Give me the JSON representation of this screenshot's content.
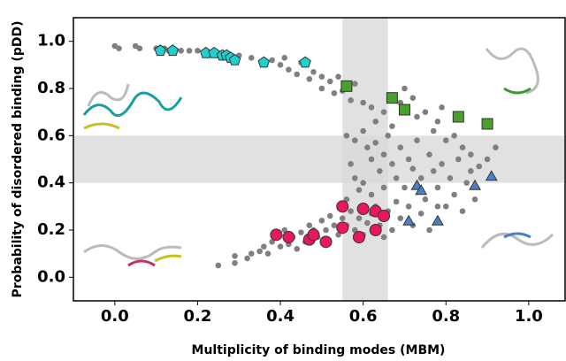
{
  "chart_data": {
    "type": "scatter",
    "xlabel": "Multiplicity of binding modes (MBM)",
    "ylabel": "Probability of disordered binding (pDD)",
    "xlim": [
      -0.1,
      1.09
    ],
    "ylim": [
      -0.1,
      1.1
    ],
    "xticks": [
      {
        "value": 0,
        "label": "0.0"
      },
      {
        "value": 0.2,
        "label": "0.2"
      },
      {
        "value": 0.4,
        "label": "0.4"
      },
      {
        "value": 0.6,
        "label": "0.6"
      },
      {
        "value": 0.8,
        "label": "0.8"
      },
      {
        "value": 1,
        "label": "1.0"
      }
    ],
    "yticks": [
      {
        "value": 0,
        "label": "0.0"
      },
      {
        "value": 0.2,
        "label": "0.2"
      },
      {
        "value": 0.4,
        "label": "0.4"
      },
      {
        "value": 0.6,
        "label": "0.6"
      },
      {
        "value": 0.8,
        "label": "0.8"
      },
      {
        "value": 1,
        "label": "1.0"
      }
    ],
    "bands": {
      "x": [
        0.55,
        0.66
      ],
      "y": [
        0.4,
        0.6
      ],
      "color": "#d9d9d9"
    },
    "series": [
      {
        "color": "#808080",
        "marker": "dot",
        "x": [
          0,
          0.01,
          0.05,
          0.06,
          0.1,
          0.12,
          0.13,
          0.16,
          0.18,
          0.2,
          0.22,
          0.24,
          0.3,
          0.33,
          0.38,
          0.4,
          0.41,
          0.42,
          0.44,
          0.45,
          0.47,
          0.48,
          0.5,
          0.5,
          0.52,
          0.53,
          0.54,
          0.55,
          0.57,
          0.58,
          0.6,
          0.62,
          0.63,
          0.65,
          0.67,
          0.69,
          0.7,
          0.72,
          0.73,
          0.75,
          0.77,
          0.78,
          0.79,
          0.8,
          0.82,
          0.84,
          0.86,
          0.88,
          0.9,
          0.92,
          0.56,
          0.58,
          0.6,
          0.61,
          0.62,
          0.63,
          0.64,
          0.65,
          0.66,
          0.67,
          0.68,
          0.69,
          0.7,
          0.71,
          0.72,
          0.73,
          0.74,
          0.75,
          0.76,
          0.77,
          0.78,
          0.79,
          0.8,
          0.81,
          0.82,
          0.83,
          0.84,
          0.85,
          0.86,
          0.87,
          0.6,
          0.62,
          0.63,
          0.65,
          0.66,
          0.68,
          0.69,
          0.71,
          0.72,
          0.74,
          0.76,
          0.78,
          0.57,
          0.58,
          0.59,
          0.56,
          0.25,
          0.29,
          0.29,
          0.32,
          0.33,
          0.35,
          0.36,
          0.37,
          0.38,
          0.4,
          0.41,
          0.42,
          0.43,
          0.44,
          0.45,
          0.46,
          0.47,
          0.48,
          0.49,
          0.5,
          0.51,
          0.52,
          0.53,
          0.54,
          0.55,
          0.56,
          0.57,
          0.58,
          0.59,
          0.6,
          0.61,
          0.62,
          0.64,
          0.65,
          0.67
        ],
        "values": [
          0.98,
          0.97,
          0.98,
          0.97,
          0.97,
          0.97,
          0.96,
          0.96,
          0.96,
          0.96,
          0.95,
          0.95,
          0.94,
          0.93,
          0.92,
          0.9,
          0.93,
          0.88,
          0.86,
          0.91,
          0.84,
          0.87,
          0.85,
          0.8,
          0.83,
          0.78,
          0.85,
          0.79,
          0.75,
          0.82,
          0.74,
          0.72,
          0.66,
          0.7,
          0.64,
          0.74,
          0.8,
          0.76,
          0.68,
          0.7,
          0.62,
          0.66,
          0.72,
          0.58,
          0.6,
          0.55,
          0.52,
          0.47,
          0.5,
          0.55,
          0.6,
          0.58,
          0.62,
          0.55,
          0.5,
          0.57,
          0.45,
          0.52,
          0.6,
          0.48,
          0.42,
          0.55,
          0.38,
          0.5,
          0.46,
          0.58,
          0.42,
          0.33,
          0.52,
          0.45,
          0.38,
          0.48,
          0.3,
          0.42,
          0.35,
          0.5,
          0.28,
          0.4,
          0.45,
          0.33,
          0.4,
          0.35,
          0.3,
          0.38,
          0.28,
          0.32,
          0.25,
          0.3,
          0.22,
          0.27,
          0.2,
          0.3,
          0.48,
          0.42,
          0.37,
          0.33,
          0.05,
          0.06,
          0.09,
          0.08,
          0.1,
          0.11,
          0.13,
          0.1,
          0.15,
          0.13,
          0.2,
          0.14,
          0.17,
          0.12,
          0.19,
          0.15,
          0.22,
          0.2,
          0.17,
          0.24,
          0.2,
          0.26,
          0.22,
          0.18,
          0.25,
          0.22,
          0.28,
          0.2,
          0.25,
          0.18,
          0.23,
          0.27,
          0.22,
          0.17,
          0.2
        ]
      },
      {
        "color": "#1fd0d0",
        "marker": "pentagon",
        "x": [
          0.11,
          0.14,
          0.22,
          0.24,
          0.26,
          0.27,
          0.28,
          0.29,
          0.36,
          0.46
        ],
        "values": [
          0.96,
          0.96,
          0.95,
          0.95,
          0.94,
          0.94,
          0.93,
          0.92,
          0.91,
          0.91
        ]
      },
      {
        "color": "#4aa02c",
        "marker": "square",
        "x": [
          0.56,
          0.67,
          0.7,
          0.83,
          0.9
        ],
        "values": [
          0.81,
          0.76,
          0.71,
          0.68,
          0.65
        ]
      },
      {
        "color": "#e8185a",
        "marker": "circle",
        "x": [
          0.39,
          0.42,
          0.47,
          0.48,
          0.51,
          0.55,
          0.55,
          0.59,
          0.6,
          0.63,
          0.63,
          0.65
        ],
        "values": [
          0.18,
          0.17,
          0.16,
          0.18,
          0.15,
          0.3,
          0.21,
          0.17,
          0.29,
          0.28,
          0.2,
          0.26
        ]
      },
      {
        "color": "#4a7fc9",
        "marker": "triangle",
        "x": [
          0.71,
          0.73,
          0.74,
          0.78,
          0.87,
          0.91
        ],
        "values": [
          0.24,
          0.39,
          0.37,
          0.24,
          0.39,
          0.43
        ]
      }
    ]
  }
}
